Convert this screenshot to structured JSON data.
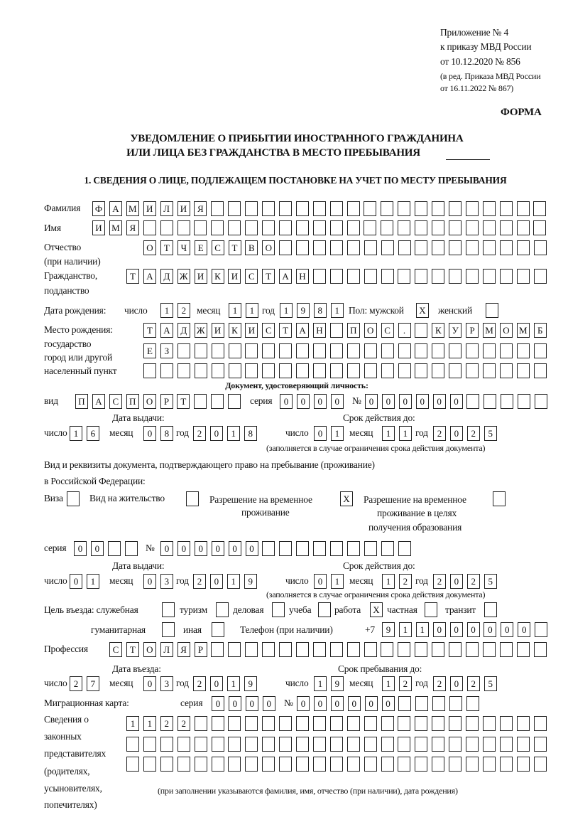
{
  "header": {
    "appendix": "Приложение № 4",
    "order": "к приказу МВД России",
    "order_date": "от 10.12.2020 № 856",
    "edition_1": "(в ред. Приказа МВД России",
    "edition_2": "от 16.11.2022 № 867)",
    "form_label": "ФОРМА",
    "title_1": "УВЕДОМЛЕНИЕ О ПРИБЫТИИ ИНОСТРАННОГО ГРАЖДАНИНА",
    "title_2": "ИЛИ ЛИЦА БЕЗ ГРАЖДАНСТВА В МЕСТО ПРЕБЫВАНИЯ",
    "section_1": "1. СВЕДЕНИЯ О ЛИЦЕ, ПОДЛЕЖАЩЕМ ПОСТАНОВКЕ НА УЧЕТ ПО МЕСТУ ПРЕБЫВАНИЯ"
  },
  "labels": {
    "surname": "Фамилия",
    "name": "Имя",
    "patronymic_1": "Отчество",
    "patronymic_2": "(при наличии)",
    "citizenship_1": "Гражданство,",
    "citizenship_2": "подданство",
    "birth_date": "Дата рождения:",
    "day": "число",
    "month": "месяц",
    "year": "год",
    "sex": "Пол: мужской",
    "female": "женский",
    "birthplace_1": "Место рождения:",
    "birthplace_2": "государство",
    "birthplace_3": "город или другой",
    "birthplace_4": "населенный пункт",
    "id_doc": "Документ, удостоверяющий личность:",
    "kind": "вид",
    "series": "серия",
    "number": "№",
    "issue_date": "Дата выдачи:",
    "valid_until": "Срок действия до:",
    "validity_note": "(заполняется в случае ограничения срока действия документа)",
    "permit_doc_1": "Вид и реквизиты документа, подтверждающего право на пребывание (проживание)",
    "permit_doc_2": "в Российской Федерации:",
    "visa": "Виза",
    "residence_permit": "Вид на жительство",
    "temp_residence_1": "Разрешение на временное",
    "temp_residence_2": "проживание",
    "temp_edu_1": "Разрешение на временное",
    "temp_edu_2": "проживание в целях",
    "temp_edu_3": "получения образования",
    "purpose": "Цель въезда: служебная",
    "tourism": "туризм",
    "business": "деловая",
    "study": "учеба",
    "work": "работа",
    "private": "частная",
    "transit": "транзит",
    "humanitarian": "гуманитарная",
    "other": "иная",
    "phone": "Телефон (при наличии)",
    "phone_prefix": "+7",
    "profession": "Профессия",
    "entry_date": "Дата въезда:",
    "stay_until": "Срок пребывания до:",
    "migration_card": "Миграционная карта:",
    "reps_1": "Сведения о",
    "reps_2": "законных",
    "reps_3": "представителях",
    "reps_4": "(родителях,",
    "reps_5": "усыновителях,",
    "reps_6": "попечителях)",
    "reps_note": "(при заполнении указываются фамилия, имя, отчество (при наличии), дата рождения)"
  },
  "fields": {
    "surname": [
      "Ф",
      "А",
      "М",
      "И",
      "Л",
      "И",
      "Я"
    ],
    "name": [
      "И",
      "М",
      "Я"
    ],
    "patronymic": [
      "О",
      "Т",
      "Ч",
      "Е",
      "С",
      "Т",
      "В",
      "О"
    ],
    "citizenship": [
      "Т",
      "А",
      "Д",
      "Ж",
      "И",
      "К",
      "И",
      "С",
      "Т",
      "А",
      "Н"
    ],
    "birth_day": [
      "1",
      "2"
    ],
    "birth_month": [
      "1",
      "1"
    ],
    "birth_year": [
      "1",
      "9",
      "8",
      "1"
    ],
    "sex_male": [
      "X"
    ],
    "sex_female": [],
    "birthplace_1": [
      "Т",
      "А",
      "Д",
      "Ж",
      "И",
      "К",
      "И",
      "С",
      "Т",
      "А",
      "Н",
      "",
      "П",
      "О",
      "С",
      ".",
      "",
      "К",
      "У",
      "Р",
      "М",
      "О",
      "М",
      "Б"
    ],
    "birthplace_2": [
      "Е",
      "З"
    ],
    "birthplace_3": [],
    "id_kind": [
      "П",
      "А",
      "С",
      "П",
      "О",
      "Р",
      "Т"
    ],
    "id_series": [
      "0",
      "0",
      "0",
      "0"
    ],
    "id_number": [
      "0",
      "0",
      "0",
      "0",
      "0",
      "0"
    ],
    "id_issue_day": [
      "1",
      "6"
    ],
    "id_issue_month": [
      "0",
      "8"
    ],
    "id_issue_year": [
      "2",
      "0",
      "1",
      "8"
    ],
    "id_valid_day": [
      "0",
      "1"
    ],
    "id_valid_month": [
      "1",
      "1"
    ],
    "id_valid_year": [
      "2",
      "0",
      "2",
      "5"
    ],
    "permit_visa": [],
    "permit_residence": [],
    "permit_temp": [
      "X"
    ],
    "permit_temp_edu": [],
    "permit_series": [
      "0",
      "0"
    ],
    "permit_number": [
      "0",
      "0",
      "0",
      "0",
      "0",
      "0"
    ],
    "permit_issue_day": [
      "0",
      "1"
    ],
    "permit_issue_month": [
      "0",
      "3"
    ],
    "permit_issue_year": [
      "2",
      "0",
      "1",
      "9"
    ],
    "permit_valid_day": [
      "0",
      "1"
    ],
    "permit_valid_month": [
      "1",
      "2"
    ],
    "permit_valid_year": [
      "2",
      "0",
      "2",
      "5"
    ],
    "purpose_official": [],
    "purpose_tourism": [],
    "purpose_business": [],
    "purpose_study": [],
    "purpose_work": [
      "X"
    ],
    "purpose_private": [],
    "purpose_transit": [],
    "purpose_humanitarian": [],
    "purpose_other": [],
    "phone": [
      "9",
      "1",
      "1",
      "0",
      "0",
      "0",
      "0",
      "0",
      "0"
    ],
    "profession": [
      "С",
      "Т",
      "О",
      "Л",
      "Я",
      "Р"
    ],
    "entry_day": [
      "2",
      "7"
    ],
    "entry_month": [
      "0",
      "3"
    ],
    "entry_year": [
      "2",
      "0",
      "1",
      "9"
    ],
    "stay_day": [
      "1",
      "9"
    ],
    "stay_month": [
      "1",
      "2"
    ],
    "stay_year": [
      "2",
      "0",
      "2",
      "5"
    ],
    "mig_series": [
      "0",
      "0",
      "0",
      "0"
    ],
    "mig_number": [
      "0",
      "0",
      "0",
      "0",
      "0",
      "0"
    ],
    "reps_1": [
      "1",
      "1",
      "2",
      "2"
    ],
    "reps_2": [],
    "reps_3": []
  }
}
